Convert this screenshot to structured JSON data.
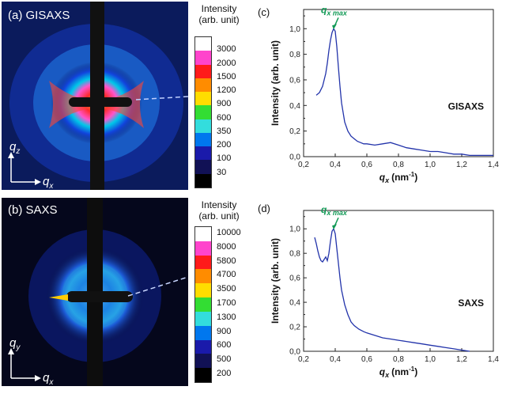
{
  "panels": {
    "a": {
      "label": "(a) GISAXS",
      "axis_v": "q",
      "axis_v_sub": "z",
      "axis_h": "q",
      "axis_h_sub": "x"
    },
    "b": {
      "label": "(b) SAXS",
      "axis_v": "q",
      "axis_v_sub": "y",
      "axis_h": "q",
      "axis_h_sub": "x"
    }
  },
  "colorbars": {
    "a": {
      "title_1": "Intensity",
      "title_2": "(arb. unit)",
      "colors": [
        "#ffffff",
        "#ff44cc",
        "#ff1a1a",
        "#ff8c00",
        "#ffdd00",
        "#33dd33",
        "#33dddd",
        "#0077ee",
        "#1a1aaa",
        "#111155",
        "#000000"
      ],
      "labels": [
        "3000",
        "2000",
        "1500",
        "1200",
        "900",
        "600",
        "350",
        "200",
        "100",
        "30"
      ]
    },
    "b": {
      "title_1": "Intensity",
      "title_2": "(arb. unit)",
      "colors": [
        "#ffffff",
        "#ff44cc",
        "#ff1a1a",
        "#ff8c00",
        "#ffdd00",
        "#33dd33",
        "#33dddd",
        "#0077ee",
        "#1a1aaa",
        "#111155",
        "#000000"
      ],
      "labels": [
        "10000",
        "8000",
        "5800",
        "4700",
        "3500",
        "1700",
        "1300",
        "900",
        "600",
        "500",
        "200"
      ]
    }
  },
  "chart_data": [
    {
      "id": "c",
      "type": "line",
      "panel_label": "(c)",
      "annotation": "GISAXS",
      "peak_label": "q",
      "peak_label_sub": "x max",
      "xlabel": "q",
      "xlabel_sub": "x",
      "xlabel_unit": "(nm",
      "xlabel_exp": "-1",
      "xlabel_close": ")",
      "ylabel": "Intensity (arb. unit)",
      "xlim": [
        0.2,
        1.4
      ],
      "ylim": [
        0.0,
        1.15
      ],
      "xticks": [
        "0,2",
        "0,4",
        "0,6",
        "0,8",
        "1,0",
        "1,2",
        "1,4"
      ],
      "yticks": [
        "0,0",
        "0,2",
        "0,4",
        "0,6",
        "0,8",
        "1,0"
      ],
      "peak_x": 0.39,
      "color": "#2233aa",
      "accent": "#119955",
      "x": [
        0.28,
        0.3,
        0.32,
        0.34,
        0.35,
        0.36,
        0.37,
        0.38,
        0.39,
        0.4,
        0.41,
        0.42,
        0.43,
        0.44,
        0.46,
        0.48,
        0.5,
        0.52,
        0.54,
        0.56,
        0.58,
        0.6,
        0.65,
        0.7,
        0.75,
        0.8,
        0.85,
        0.9,
        0.95,
        1.0,
        1.05,
        1.1,
        1.15,
        1.2,
        1.25,
        1.3,
        1.35,
        1.4
      ],
      "y": [
        0.48,
        0.5,
        0.55,
        0.65,
        0.73,
        0.83,
        0.91,
        0.97,
        1.0,
        0.98,
        0.86,
        0.7,
        0.55,
        0.42,
        0.27,
        0.2,
        0.16,
        0.14,
        0.12,
        0.11,
        0.1,
        0.1,
        0.09,
        0.1,
        0.11,
        0.09,
        0.07,
        0.06,
        0.05,
        0.04,
        0.04,
        0.03,
        0.02,
        0.02,
        0.01,
        0.01,
        0.01,
        0.01
      ]
    },
    {
      "id": "d",
      "type": "line",
      "panel_label": "(d)",
      "annotation": "SAXS",
      "peak_label": "q",
      "peak_label_sub": "x max",
      "xlabel": "q",
      "xlabel_sub": "x",
      "xlabel_unit": "(nm",
      "xlabel_exp": "-1",
      "xlabel_close": ")",
      "ylabel": "Intensity (arb. unit)",
      "xlim": [
        0.2,
        1.4
      ],
      "ylim": [
        0.0,
        1.15
      ],
      "xticks": [
        "0,2",
        "0,4",
        "0,6",
        "0,8",
        "1,0",
        "1,2",
        "1,4"
      ],
      "yticks": [
        "0,0",
        "0,2",
        "0,4",
        "0,6",
        "0,8",
        "1,0"
      ],
      "peak_x": 0.39,
      "color": "#2233aa",
      "accent": "#119955",
      "x": [
        0.27,
        0.28,
        0.29,
        0.3,
        0.31,
        0.32,
        0.33,
        0.34,
        0.35,
        0.36,
        0.37,
        0.38,
        0.39,
        0.4,
        0.41,
        0.42,
        0.43,
        0.44,
        0.46,
        0.48,
        0.5,
        0.52,
        0.55,
        0.58,
        0.6,
        0.65,
        0.7,
        0.75,
        0.8,
        0.85,
        0.9,
        0.95,
        1.0,
        1.05,
        1.1,
        1.15,
        1.2,
        1.25
      ],
      "y": [
        0.93,
        0.88,
        0.82,
        0.77,
        0.74,
        0.73,
        0.75,
        0.77,
        0.74,
        0.8,
        0.9,
        0.98,
        1.0,
        0.96,
        0.84,
        0.72,
        0.6,
        0.5,
        0.38,
        0.3,
        0.24,
        0.21,
        0.18,
        0.16,
        0.15,
        0.13,
        0.11,
        0.1,
        0.09,
        0.08,
        0.07,
        0.06,
        0.05,
        0.04,
        0.03,
        0.02,
        0.01,
        0.0
      ]
    }
  ]
}
